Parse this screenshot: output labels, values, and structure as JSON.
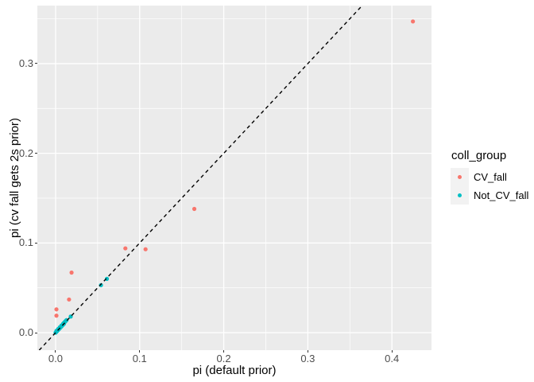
{
  "figure": {
    "colors": {
      "background": "#FFFFFF",
      "panel_background": "#EBEBEB",
      "grid": "#FFFFFF",
      "tick_mark": "#333333",
      "tick_label": "#4D4D4D",
      "title_text": "#000000",
      "legend_key_background": "#F2F2F2"
    }
  },
  "chart_data": {
    "type": "scatter",
    "title": "",
    "xlabel": "pi (default prior)",
    "ylabel": "pi (cv fall gets 2s prior)",
    "xlim": [
      -0.0217,
      0.4471
    ],
    "ylim": [
      -0.0195,
      0.3647
    ],
    "grid": true,
    "x_major_ticks": [
      0.0,
      0.1,
      0.2,
      0.3,
      0.4
    ],
    "x_tick_labels": [
      "0.0",
      "0.1",
      "0.2",
      "0.3",
      "0.4"
    ],
    "x_minor_ticks": [
      0.05,
      0.15,
      0.25,
      0.35
    ],
    "y_major_ticks": [
      0.0,
      0.1,
      0.2,
      0.3
    ],
    "y_tick_labels": [
      "0.0",
      "0.1",
      "0.2",
      "0.3"
    ],
    "y_minor_ticks": [
      0.05,
      0.15,
      0.25,
      0.35
    ],
    "reference_line": {
      "type": "abline",
      "intercept": 0,
      "slope": 1,
      "style": "dashed",
      "color": "#000000"
    },
    "legend": {
      "title": "coll_group",
      "position": "right"
    },
    "series": [
      {
        "name": "CV_fall",
        "color": "#F8766D",
        "points": [
          [
            0.425,
            0.347
          ],
          [
            0.165,
            0.138
          ],
          [
            0.107,
            0.093
          ],
          [
            0.083,
            0.094
          ],
          [
            0.019,
            0.067
          ],
          [
            0.016,
            0.037
          ],
          [
            0.001,
            0.026
          ],
          [
            0.001,
            0.019
          ]
        ]
      },
      {
        "name": "Not_CV_fall",
        "color": "#00BFC4",
        "points": [
          [
            0.0,
            0.0
          ],
          [
            0.001,
            0.001
          ],
          [
            0.001,
            0.002
          ],
          [
            0.002,
            0.002
          ],
          [
            0.003,
            0.003
          ],
          [
            0.003,
            0.004
          ],
          [
            0.004,
            0.004
          ],
          [
            0.005,
            0.005
          ],
          [
            0.005,
            0.006
          ],
          [
            0.006,
            0.006
          ],
          [
            0.007,
            0.007
          ],
          [
            0.007,
            0.008
          ],
          [
            0.008,
            0.008
          ],
          [
            0.009,
            0.009
          ],
          [
            0.009,
            0.01
          ],
          [
            0.01,
            0.01
          ],
          [
            0.01,
            0.011
          ],
          [
            0.011,
            0.012
          ],
          [
            0.012,
            0.013
          ],
          [
            0.013,
            0.014
          ],
          [
            0.018,
            0.018
          ],
          [
            0.054,
            0.053
          ],
          [
            0.061,
            0.06
          ]
        ]
      }
    ]
  }
}
